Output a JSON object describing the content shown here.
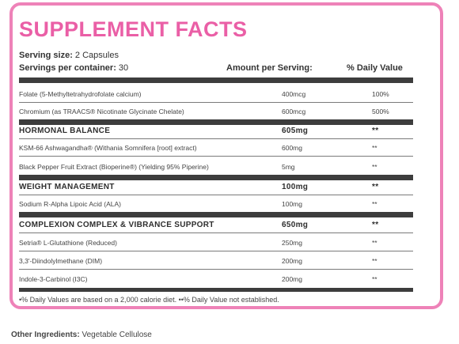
{
  "title": "SUPPLEMENT FACTS",
  "serving_size_label": "Serving size:",
  "serving_size_value": " 2 Capsules",
  "servings_label": "Servings per container:",
  "servings_value": " 30",
  "col_amount": "Amount per Serving:",
  "col_dv": "% Daily Value",
  "rows": [
    {
      "name": "Folate (5-Methyltetrahydrofolate calcium)",
      "amount": "400mcg",
      "dv": "100%"
    },
    {
      "name": "Chromium (as TRAACS® Nicotinate Glycinate Chelate)",
      "amount": "600mcg",
      "dv": "500%"
    },
    {
      "name": "HORMONAL BALANCE",
      "amount": "605mg",
      "dv": "**"
    },
    {
      "name": "KSM-66 Ashwagandha® (Withania Somnifera [root] extract)",
      "amount": "600mg",
      "dv": "**"
    },
    {
      "name": "Black Pepper Fruit Extract (Bioperine®) (Yielding 95% Piperine)",
      "amount": "5mg",
      "dv": "**"
    },
    {
      "name": "WEIGHT MANAGEMENT",
      "amount": "100mg",
      "dv": "**"
    },
    {
      "name": "Sodium R-Alpha Lipoic Acid (ALA)",
      "amount": "100mg",
      "dv": "**"
    },
    {
      "name": "COMPLEXION COMPLEX & VIBRANCE SUPPORT",
      "amount": "650mg",
      "dv": "**"
    },
    {
      "name": "Setria® L-Glutathione (Reduced)",
      "amount": "250mg",
      "dv": "**"
    },
    {
      "name": "3,3'-Diindolylmethane (DIM)",
      "amount": "200mg",
      "dv": "**"
    },
    {
      "name": "Indole-3-Carbinol (I3C)",
      "amount": "200mg",
      "dv": "**"
    }
  ],
  "footnote": "•% Daily Values are based on a 2,000 calorie diet.  ••% Daily Value not established.",
  "other_label": "Other Ingredients:",
  "other_value": " Vegetable Cellulose",
  "colors": {
    "accent": "#ea5fa6",
    "border": "#ee82b8",
    "rule": "#3d3d3d"
  }
}
